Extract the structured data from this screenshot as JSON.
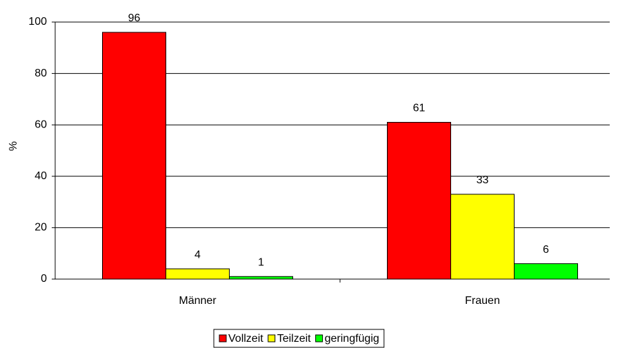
{
  "chart_data": {
    "type": "bar",
    "ylabel": "%",
    "categories": [
      "Männer",
      "Frauen"
    ],
    "series": [
      {
        "name": "Vollzeit",
        "color": "#ff0000",
        "values": [
          96,
          61
        ]
      },
      {
        "name": "Teilzeit",
        "color": "#ffff00",
        "values": [
          4,
          33
        ]
      },
      {
        "name": "geringfügig",
        "color": "#00ff00",
        "values": [
          1,
          6
        ]
      }
    ],
    "ylim": [
      0,
      100
    ],
    "yticks": [
      0,
      20,
      40,
      60,
      80,
      100
    ],
    "grid": true,
    "legend": "bottom"
  }
}
